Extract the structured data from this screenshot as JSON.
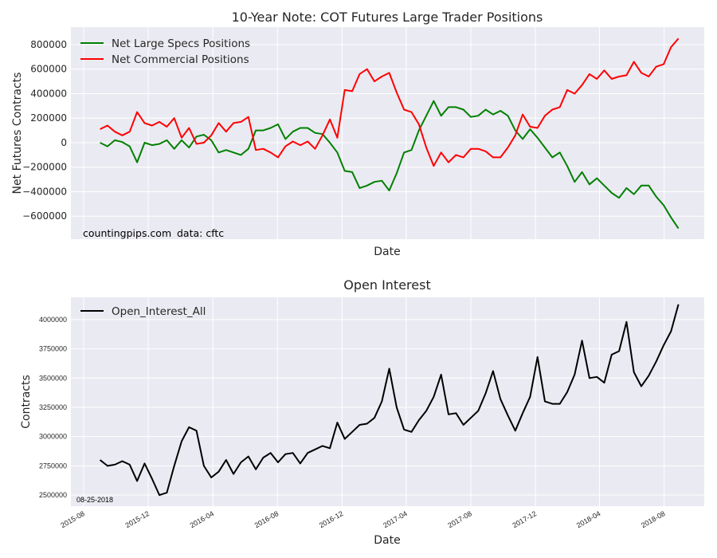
{
  "chart_data": [
    {
      "type": "line",
      "title": "10-Year Note: COT Futures Large Trader Positions",
      "xlabel": "Date",
      "ylabel": "Net Futures Contracts",
      "ylim": [
        -787000,
        943000
      ],
      "yticks": [
        800000,
        600000,
        400000,
        200000,
        0,
        -200000,
        -400000,
        -600000
      ],
      "ytick_labels": [
        "800000",
        "600000",
        "400000",
        "200000",
        "0",
        "−200000",
        "−400000",
        "−600000"
      ],
      "grid": true,
      "legend": "top-left",
      "start_date": "2015-09-01",
      "step_days": 14,
      "series": [
        {
          "name": "Net Large Specs Positions",
          "color": "#008000",
          "values": [
            0,
            -30000,
            20000,
            5000,
            -30000,
            -160000,
            0,
            -20000,
            -10000,
            20000,
            -50000,
            20000,
            -40000,
            50000,
            65000,
            20000,
            -80000,
            -60000,
            -80000,
            -100000,
            -50000,
            100000,
            100000,
            120000,
            150000,
            30000,
            90000,
            120000,
            120000,
            80000,
            70000,
            0,
            -80000,
            -230000,
            -240000,
            -370000,
            -350000,
            -320000,
            -310000,
            -390000,
            -250000,
            -80000,
            -60000,
            100000,
            220000,
            340000,
            220000,
            290000,
            290000,
            270000,
            210000,
            220000,
            270000,
            230000,
            260000,
            220000,
            100000,
            30000,
            110000,
            40000,
            -40000,
            -120000,
            -80000,
            -190000,
            -320000,
            -240000,
            -340000,
            -290000,
            -350000,
            -410000,
            -450000,
            -370000,
            -420000,
            -350000,
            -350000,
            -440000,
            -510000,
            -610000,
            -700000
          ]
        },
        {
          "name": "Net Commercial Positions",
          "color": "#ff0000",
          "values": [
            110000,
            140000,
            90000,
            60000,
            90000,
            250000,
            160000,
            140000,
            170000,
            130000,
            200000,
            40000,
            120000,
            -10000,
            0,
            60000,
            160000,
            90000,
            160000,
            170000,
            210000,
            -60000,
            -50000,
            -80000,
            -120000,
            -30000,
            10000,
            -20000,
            10000,
            -50000,
            60000,
            190000,
            40000,
            430000,
            420000,
            560000,
            600000,
            500000,
            540000,
            570000,
            410000,
            270000,
            250000,
            150000,
            -40000,
            -190000,
            -80000,
            -160000,
            -100000,
            -120000,
            -50000,
            -50000,
            -70000,
            -120000,
            -120000,
            -40000,
            60000,
            230000,
            130000,
            120000,
            220000,
            270000,
            290000,
            430000,
            400000,
            470000,
            560000,
            520000,
            590000,
            520000,
            540000,
            550000,
            660000,
            570000,
            540000,
            620000,
            640000,
            780000,
            850000
          ]
        }
      ],
      "annotations": [
        "countingpips.com",
        "data: cftc"
      ]
    },
    {
      "type": "line",
      "title": "Open Interest",
      "xlabel": "Date",
      "ylabel": "Contracts",
      "ylim": [
        2405000,
        4190000
      ],
      "yticks": [
        2500000,
        2750000,
        3000000,
        3250000,
        3500000,
        3750000,
        4000000
      ],
      "ytick_labels": [
        "2500000",
        "2750000",
        "3000000",
        "3250000",
        "3500000",
        "3750000",
        "4000000"
      ],
      "xticks": [
        "2015-08",
        "2015-12",
        "2016-04",
        "2016-08",
        "2016-12",
        "2017-04",
        "2017-08",
        "2017-12",
        "2018-04",
        "2018-08"
      ],
      "grid": true,
      "legend": "top-left",
      "start_date": "2015-09-01",
      "step_days": 14,
      "series": [
        {
          "name": "Open_Interest_All",
          "color": "#000000",
          "values": [
            2800000,
            2750000,
            2760000,
            2790000,
            2760000,
            2620000,
            2770000,
            2640000,
            2500000,
            2520000,
            2750000,
            2960000,
            3080000,
            3050000,
            2750000,
            2650000,
            2700000,
            2800000,
            2680000,
            2780000,
            2830000,
            2720000,
            2820000,
            2860000,
            2780000,
            2850000,
            2860000,
            2770000,
            2860000,
            2890000,
            2920000,
            2900000,
            3120000,
            2980000,
            3040000,
            3100000,
            3110000,
            3160000,
            3300000,
            3580000,
            3250000,
            3060000,
            3040000,
            3140000,
            3220000,
            3340000,
            3530000,
            3190000,
            3200000,
            3100000,
            3160000,
            3220000,
            3370000,
            3560000,
            3320000,
            3180000,
            3050000,
            3200000,
            3340000,
            3680000,
            3300000,
            3280000,
            3280000,
            3380000,
            3530000,
            3820000,
            3500000,
            3510000,
            3460000,
            3700000,
            3730000,
            3980000,
            3550000,
            3430000,
            3520000,
            3640000,
            3780000,
            3900000,
            4130000
          ]
        }
      ],
      "annotations": [
        "08-25-2018"
      ]
    }
  ]
}
